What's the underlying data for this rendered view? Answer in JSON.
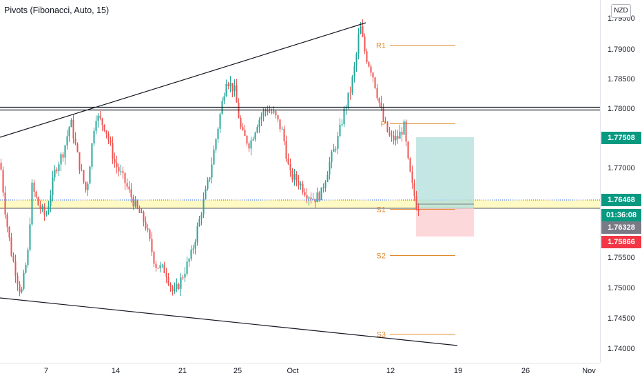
{
  "indicator": {
    "title": "Pivots (Fibonacci, Auto, 15)"
  },
  "currency": "NZD",
  "price_axis": {
    "ticks": [
      "1.79500",
      "1.79000",
      "1.78500",
      "1.78000",
      "1.77000",
      "1.75500",
      "1.75000",
      "1.74500",
      "1.74000"
    ]
  },
  "time_axis": {
    "ticks": [
      "7",
      "14",
      "21",
      "25",
      "Oct",
      "12",
      "19",
      "26",
      "Nov"
    ]
  },
  "price_labels": {
    "target": {
      "value": "1.77508",
      "color": "#089981"
    },
    "current": {
      "value": "1.76468",
      "color": "#089981"
    },
    "countdown": {
      "value": "01:36:08",
      "color": "#089981"
    },
    "entry": {
      "value": "1.76328",
      "color": "#787b86"
    },
    "stop": {
      "value": "1.75866",
      "color": "#f23645"
    }
  },
  "pivots": [
    {
      "label": "R1",
      "price": 1.79068
    },
    {
      "label": "P",
      "price": 1.7775
    },
    {
      "label": "S1",
      "price": 1.76328
    },
    {
      "label": "S2",
      "price": 1.75566
    },
    {
      "label": "S3",
      "price": 1.74253
    }
  ],
  "colors": {
    "up": "#26a69a",
    "down": "#ef5350",
    "pivot": "#e0892f",
    "profit_zone": "#b2dfdb",
    "loss_zone": "#fccbcd",
    "highlight_band": "#fff9c4"
  }
}
